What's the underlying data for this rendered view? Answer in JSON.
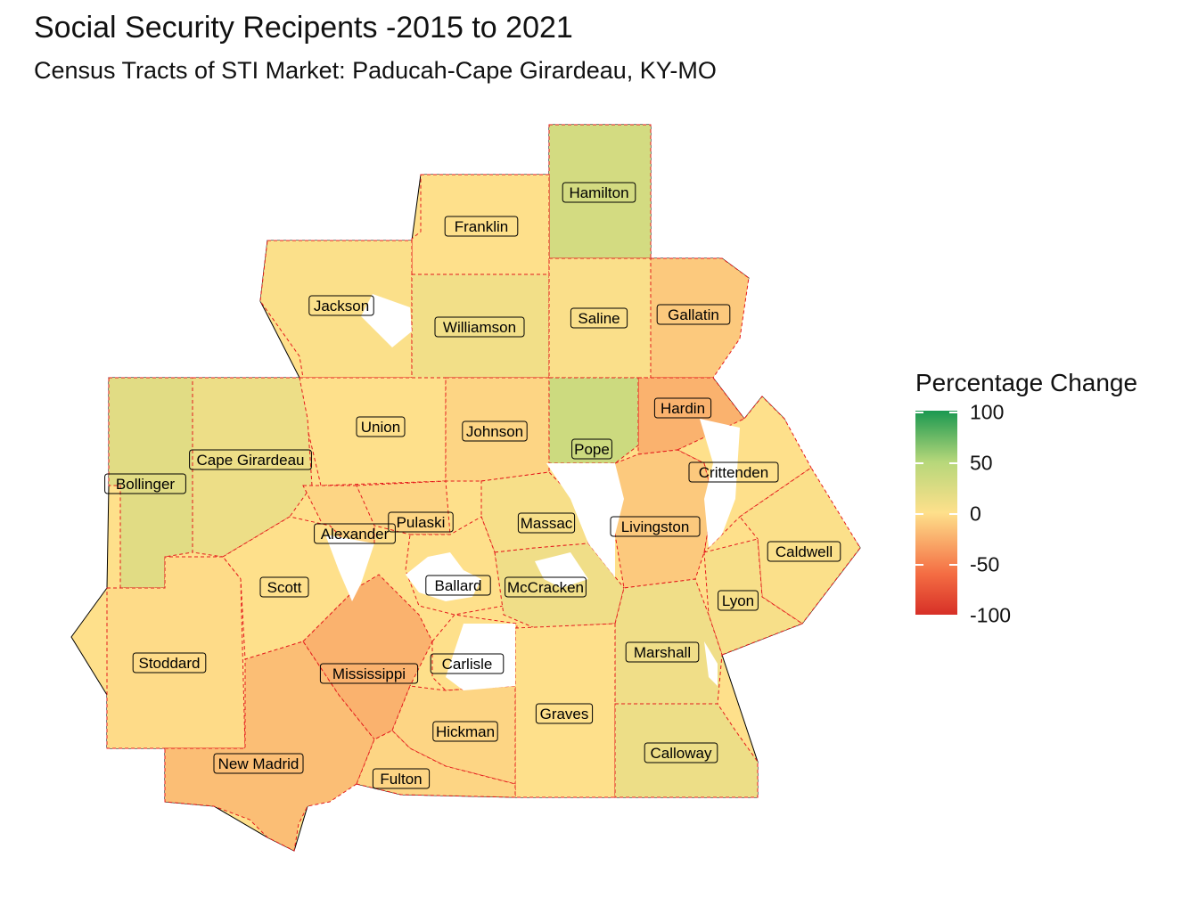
{
  "title": "Social Security Recipents -2015 to 2021",
  "subtitle": "Census Tracts of STI Market: Paducah-Cape Girardeau, KY-MO",
  "legend": {
    "title": "Percentage Change",
    "ticks": [
      "100",
      "50",
      "0",
      "-50",
      "-100"
    ],
    "range": [
      -100,
      100
    ],
    "colors": {
      "high": "#1a9850",
      "mid_high": "#b6d77a",
      "mid": "#fee08b",
      "mid_low": "#f46d43",
      "low": "#d73027"
    }
  },
  "counties": [
    {
      "name": "Hamilton",
      "change": 30
    },
    {
      "name": "Franklin",
      "change": 0
    },
    {
      "name": "Jackson",
      "change": 2
    },
    {
      "name": "Williamson",
      "change": 8
    },
    {
      "name": "Saline",
      "change": 3
    },
    {
      "name": "Gallatin",
      "change": -10
    },
    {
      "name": "Hardin",
      "change": -20
    },
    {
      "name": "Union",
      "change": 0
    },
    {
      "name": "Johnson",
      "change": -5
    },
    {
      "name": "Pope",
      "change": 35
    },
    {
      "name": "Cape Girardeau",
      "change": 12
    },
    {
      "name": "Bollinger",
      "change": 20
    },
    {
      "name": "Crittenden",
      "change": 0
    },
    {
      "name": "Alexander",
      "change": -5
    },
    {
      "name": "Pulaski",
      "change": -5
    },
    {
      "name": "Massac",
      "change": 5
    },
    {
      "name": "Livingston",
      "change": -10
    },
    {
      "name": "Caldwell",
      "change": 2
    },
    {
      "name": "Scott",
      "change": 0
    },
    {
      "name": "Ballard",
      "change": 0
    },
    {
      "name": "McCracken",
      "change": 10
    },
    {
      "name": "Lyon",
      "change": 5
    },
    {
      "name": "Stoddard",
      "change": -2
    },
    {
      "name": "Mississippi",
      "change": -20
    },
    {
      "name": "Carlisle",
      "change": 0
    },
    {
      "name": "Marshall",
      "change": 10
    },
    {
      "name": "Graves",
      "change": 0
    },
    {
      "name": "Hickman",
      "change": -5
    },
    {
      "name": "Calloway",
      "change": 12
    },
    {
      "name": "New Madrid",
      "change": -15
    },
    {
      "name": "Fulton",
      "change": -5
    }
  ]
}
